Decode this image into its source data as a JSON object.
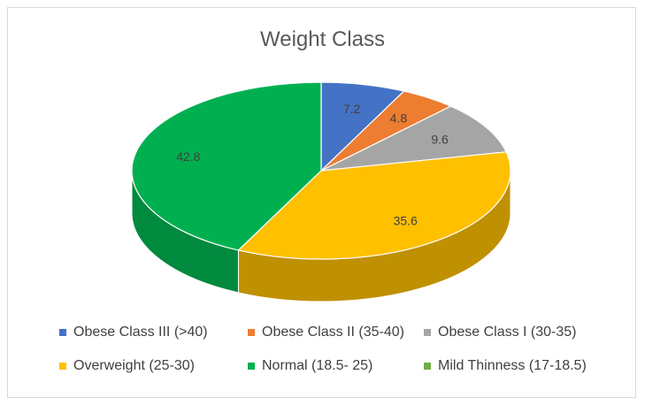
{
  "chart_data": {
    "type": "pie",
    "title": "Weight Class",
    "series": [
      {
        "name": "Obese Class III (>40)",
        "value": 7.2,
        "color": "#4472c4",
        "side": "#2f528f"
      },
      {
        "name": "Obese Class II (35-40)",
        "value": 4.8,
        "color": "#ed7d31",
        "side": "#ae5a21"
      },
      {
        "name": "Obese Class I (30-35)",
        "value": 9.6,
        "color": "#a5a5a5",
        "side": "#7b7b7b"
      },
      {
        "name": "Overweight (25-30)",
        "value": 35.6,
        "color": "#ffc000",
        "side": "#bf9000"
      },
      {
        "name": "Normal (18.5- 25)",
        "value": 42.8,
        "color": "#00b050",
        "side": "#008a3e"
      },
      {
        "name": "Mild Thinness (17-18.5)",
        "value": 0,
        "color": "#70ad47",
        "side": "#548235"
      }
    ],
    "legend_position": "bottom"
  }
}
